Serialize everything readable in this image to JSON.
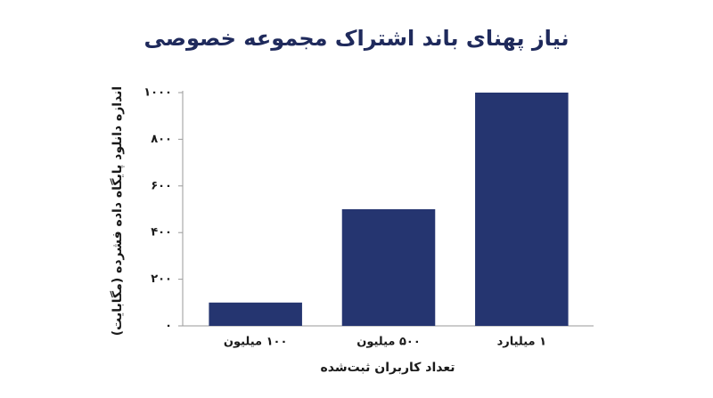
{
  "chart_data": {
    "type": "bar",
    "title": "نیاز پهنای باند اشتراک مجموعه خصوصی",
    "x_label": "تعداد کاربران ثبت‌شده",
    "y_label": "اندازه دانلود پایگاه داده فشرده (مگابایت)",
    "categories": [
      "۱۰۰ میلیون",
      "۵۰۰ میلیون",
      "۱ میلیارد"
    ],
    "values": [
      100,
      500,
      1000
    ],
    "color": "#253570",
    "ylim": [
      0,
      1000
    ],
    "yticks": [
      {
        "value": 0,
        "label": "۰"
      },
      {
        "value": 200,
        "label": "۲۰۰"
      },
      {
        "value": 400,
        "label": "۴۰۰"
      },
      {
        "value": 600,
        "label": "۶۰۰"
      },
      {
        "value": 800,
        "label": "۸۰۰"
      },
      {
        "value": 1000,
        "label": "۱۰۰۰"
      }
    ],
    "grid": false
  }
}
